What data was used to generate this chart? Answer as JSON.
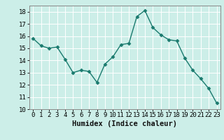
{
  "x": [
    0,
    1,
    2,
    3,
    4,
    5,
    6,
    7,
    8,
    9,
    10,
    11,
    12,
    13,
    14,
    15,
    16,
    17,
    18,
    19,
    20,
    21,
    22,
    23
  ],
  "y": [
    15.8,
    15.2,
    15.0,
    15.1,
    14.1,
    13.0,
    13.2,
    13.1,
    12.2,
    13.7,
    14.3,
    15.3,
    15.4,
    17.6,
    18.1,
    16.7,
    16.1,
    15.7,
    15.6,
    14.2,
    13.2,
    12.5,
    11.7,
    10.5
  ],
  "xlabel": "Humidex (Indice chaleur)",
  "ylim": [
    10,
    18.5
  ],
  "xlim": [
    -0.5,
    23.5
  ],
  "yticks": [
    10,
    11,
    12,
    13,
    14,
    15,
    16,
    17,
    18
  ],
  "xticks": [
    0,
    1,
    2,
    3,
    4,
    5,
    6,
    7,
    8,
    9,
    10,
    11,
    12,
    13,
    14,
    15,
    16,
    17,
    18,
    19,
    20,
    21,
    22,
    23
  ],
  "line_color": "#1a7a6e",
  "marker": "D",
  "marker_size": 2.5,
  "bg_color": "#cceee8",
  "grid_color": "#ffffff",
  "tick_fontsize": 6.5,
  "xlabel_fontsize": 7.5
}
